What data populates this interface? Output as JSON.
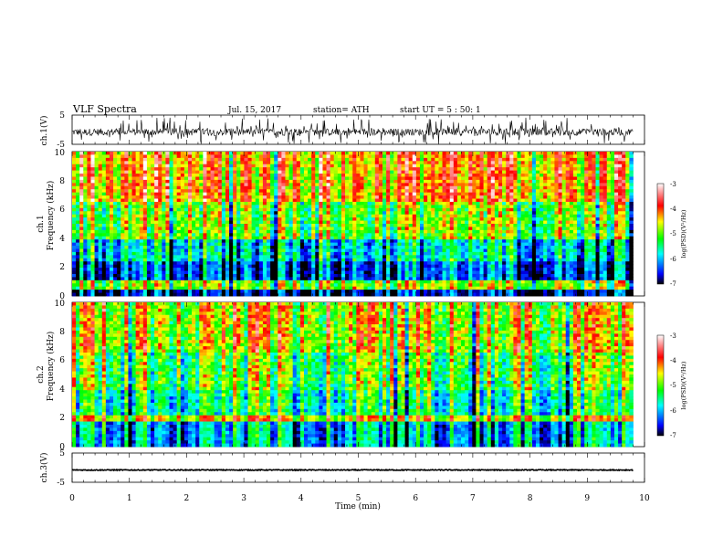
{
  "header": {
    "title": "VLF  Spectra",
    "date": "Jul.  15, 2017",
    "station": "station= ATH",
    "start": "start  UT  =    5  : 50: 1"
  },
  "chart_data": [
    {
      "type": "line",
      "name": "ch1-waveform",
      "ylabel": "ch.1(V)",
      "yticks": [
        "5",
        "-5"
      ],
      "ylim": [
        -5,
        5
      ],
      "xlim": [
        0,
        10
      ],
      "description_values": {
        "mean": -0.8,
        "noise_amplitude": 1.2
      }
    },
    {
      "type": "heatmap",
      "name": "ch1-spectrogram",
      "ylabel": "ch.1\nFrequency (kHz)",
      "ylabel_top": "ch.1",
      "ylabel_bottom": "Frequency  (kHz)",
      "yticks": [
        "10",
        "8",
        "6",
        "4",
        "2",
        "0"
      ],
      "ylim": [
        0,
        10
      ],
      "xlim": [
        0,
        9.8
      ],
      "colorbar": {
        "label": "log(PSD)(V²/Hz)",
        "ticks": [
          "-3",
          "-4",
          "-5",
          "-6",
          "-7"
        ],
        "range": [
          -7,
          -3
        ]
      }
    },
    {
      "type": "heatmap",
      "name": "ch2-spectrogram",
      "ylabel_top": "ch.2",
      "ylabel_bottom": "Frequency  (kHz)",
      "yticks": [
        "10",
        "8",
        "6",
        "4",
        "2",
        "0"
      ],
      "ylim": [
        0,
        10
      ],
      "xlim": [
        0,
        9.8
      ],
      "colorbar": {
        "label": "log(PSD)(V²/Hz)",
        "ticks": [
          "-3",
          "-4",
          "-5",
          "-6",
          "-7"
        ],
        "range": [
          -7,
          -3
        ]
      }
    },
    {
      "type": "line",
      "name": "ch3-waveform",
      "ylabel": "ch.3(V)",
      "yticks": [
        "5",
        "-5"
      ],
      "ylim": [
        -5,
        5
      ],
      "xlim": [
        0,
        10
      ],
      "description_values": {
        "mean": -0.8,
        "noise_amplitude": 0.15
      }
    }
  ],
  "xaxis": {
    "label": "Time  (min)",
    "ticks": [
      "0",
      "1",
      "2",
      "3",
      "4",
      "5",
      "6",
      "7",
      "8",
      "9",
      "10"
    ],
    "range": [
      0,
      10
    ]
  },
  "colors": {
    "low": "#000000",
    "blue": "#0000ff",
    "cyan": "#00ffff",
    "green": "#00ff00",
    "yellow": "#ffff00",
    "red": "#ff0000",
    "high": "#ffffff"
  }
}
